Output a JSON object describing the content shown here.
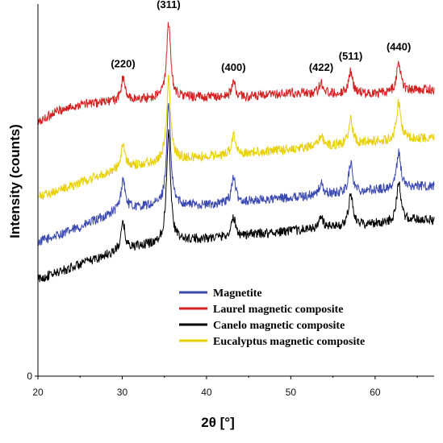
{
  "chart_data": {
    "type": "line",
    "xlabel": "2θ [°]",
    "ylabel": "Intensity (counts)",
    "xlim": [
      20,
      67
    ],
    "ylim": [
      0,
      100
    ],
    "x_ticks": [
      20,
      30,
      40,
      50,
      60
    ],
    "x_tick_labels": [
      "20",
      "30",
      "40",
      "50",
      "60"
    ],
    "y_ticks": [
      0
    ],
    "y_tick_labels": [
      "0"
    ],
    "grid": false,
    "legend_position": "bottom-right",
    "peaks": [
      {
        "label": "(220)",
        "x": 30.1
      },
      {
        "label": "(311)",
        "x": 35.5
      },
      {
        "label": "(400)",
        "x": 43.2
      },
      {
        "label": "(422)",
        "x": 53.6
      },
      {
        "label": "(511)",
        "x": 57.1
      },
      {
        "label": "(440)",
        "x": 62.8
      }
    ],
    "series": [
      {
        "name": "Magnetite",
        "color": "#3a48b0",
        "x": [
          20,
          25,
          30,
          35,
          40,
          45,
          50,
          55,
          60,
          65,
          67
        ],
        "y": [
          36,
          40,
          45,
          46,
          46,
          47,
          48,
          49,
          50,
          51,
          51
        ],
        "peaks": [
          [
            30.1,
            8
          ],
          [
            35.5,
            27
          ],
          [
            43.2,
            7
          ],
          [
            53.6,
            3
          ],
          [
            57.1,
            8
          ],
          [
            62.8,
            10
          ]
        ]
      },
      {
        "name": "Laurel magnetic composite",
        "color": "#d42020",
        "x": [
          20,
          22,
          25,
          30,
          35,
          40,
          45,
          50,
          55,
          60,
          65,
          67
        ],
        "y": [
          68,
          71,
          73,
          74,
          75,
          75,
          75,
          76,
          76,
          76,
          77,
          77
        ],
        "peaks": [
          [
            30.1,
            6
          ],
          [
            35.5,
            20
          ],
          [
            43.2,
            4
          ],
          [
            53.6,
            3
          ],
          [
            57.1,
            6
          ],
          [
            62.8,
            8
          ]
        ]
      },
      {
        "name": "Canelo magnetic composite",
        "color": "#000000",
        "x": [
          20,
          25,
          30,
          35,
          40,
          45,
          50,
          55,
          60,
          65,
          67
        ],
        "y": [
          26,
          30,
          34,
          36,
          37,
          38,
          39,
          40,
          41,
          42,
          42
        ],
        "peaks": [
          [
            30.1,
            7
          ],
          [
            35.5,
            30
          ],
          [
            43.2,
            5
          ],
          [
            53.6,
            3
          ],
          [
            57.1,
            9
          ],
          [
            62.8,
            11
          ]
        ]
      },
      {
        "name": "Eucalyptus magnetic composite",
        "color": "#e8d000",
        "x": [
          20,
          25,
          30,
          35,
          40,
          45,
          50,
          55,
          60,
          65,
          67
        ],
        "y": [
          48,
          52,
          56,
          58,
          59,
          60,
          61,
          62,
          63,
          64,
          64
        ],
        "peaks": [
          [
            30.1,
            6
          ],
          [
            35.5,
            22
          ],
          [
            43.2,
            5
          ],
          [
            53.6,
            3
          ],
          [
            57.1,
            7
          ],
          [
            62.8,
            10
          ]
        ]
      }
    ]
  }
}
